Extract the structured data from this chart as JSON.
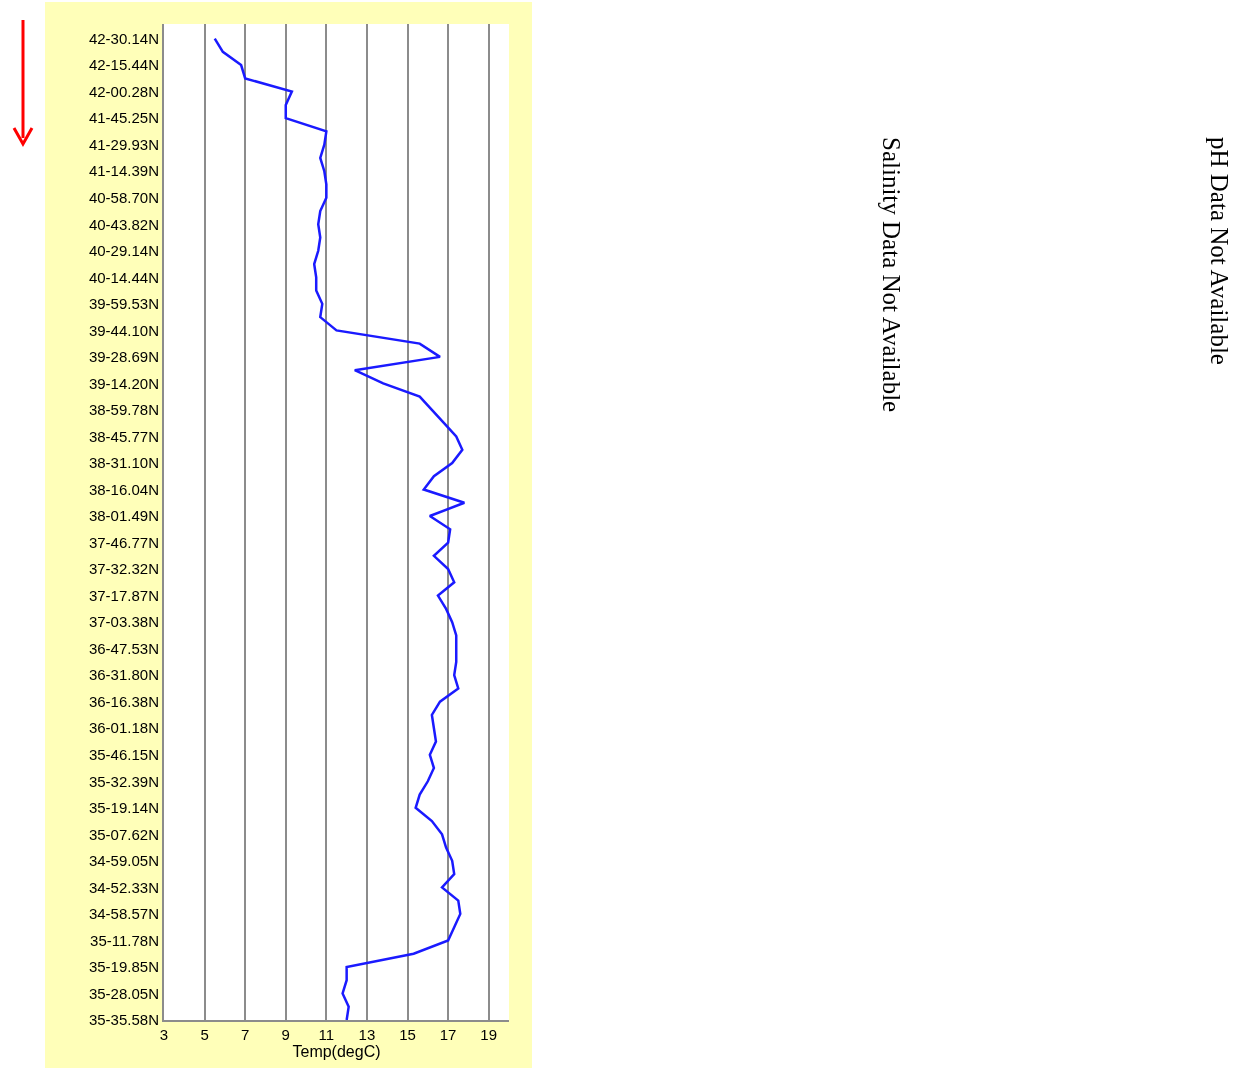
{
  "chart_data": {
    "type": "line",
    "orientation": "horizontal",
    "xlabel": "Temp(degC)",
    "xlim": [
      3,
      20
    ],
    "xticks": [
      3,
      5,
      7,
      9,
      11,
      13,
      15,
      17,
      19
    ],
    "categories": [
      "42-30.14N",
      null,
      "42-15.44N",
      null,
      "42-00.28N",
      null,
      "41-45.25N",
      null,
      "41-29.93N",
      null,
      "41-14.39N",
      null,
      "40-58.70N",
      null,
      "40-43.82N",
      null,
      "40-29.14N",
      null,
      "40-14.44N",
      null,
      "39-59.53N",
      null,
      "39-44.10N",
      null,
      "39-28.69N",
      null,
      "39-14.20N",
      null,
      "38-59.78N",
      null,
      "38-45.77N",
      null,
      "38-31.10N",
      null,
      "38-16.04N",
      null,
      "38-01.49N",
      null,
      "37-46.77N",
      null,
      "37-32.32N",
      null,
      "37-17.87N",
      null,
      "37-03.38N",
      null,
      "36-47.53N",
      null,
      "36-31.80N",
      null,
      "36-16.38N",
      null,
      "36-01.18N",
      null,
      "35-46.15N",
      null,
      "35-32.39N",
      null,
      "35-19.14N",
      null,
      "35-07.62N",
      null,
      "34-59.05N",
      null,
      "34-52.33N",
      null,
      "34-58.57N",
      null,
      "35-11.78N",
      null,
      "35-19.85N",
      null,
      "35-28.05N",
      null,
      "35-35.58N"
    ],
    "grid": "x",
    "marker": "none",
    "line_style": "solid",
    "annotations": [
      "Salinity Data Not Available",
      "pH Data Not Available"
    ],
    "series": [
      {
        "color": "#1a1aff",
        "values": [
          5.5,
          5.9,
          6.8,
          7.0,
          9.3,
          9.0,
          9.0,
          11.0,
          10.9,
          10.7,
          10.9,
          11.0,
          11.0,
          10.7,
          10.6,
          10.7,
          10.6,
          10.4,
          10.5,
          10.5,
          10.8,
          10.7,
          11.5,
          15.6,
          16.6,
          12.4,
          13.8,
          15.6,
          16.2,
          16.8,
          17.4,
          17.7,
          17.2,
          16.3,
          15.8,
          17.8,
          16.1,
          17.1,
          17.0,
          16.3,
          17.0,
          17.3,
          16.5,
          16.9,
          17.2,
          17.4,
          17.4,
          17.4,
          17.3,
          17.5,
          16.6,
          16.2,
          16.3,
          16.4,
          16.1,
          16.3,
          16.0,
          15.6,
          15.4,
          16.2,
          16.7,
          16.9,
          17.2,
          17.3,
          16.7,
          17.5,
          17.6,
          17.3,
          17.0,
          15.3,
          12.0,
          12.0,
          11.8,
          12.1,
          12.0
        ]
      }
    ]
  }
}
